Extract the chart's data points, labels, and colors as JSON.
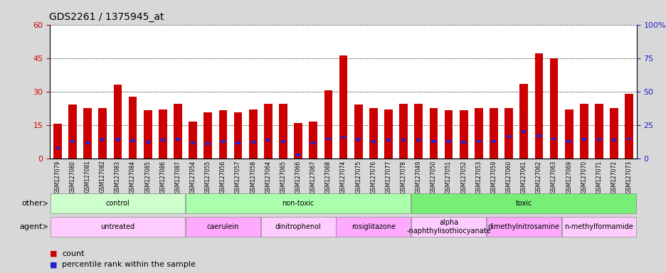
{
  "title": "GDS2261 / 1375945_at",
  "samples": [
    "GSM127079",
    "GSM127080",
    "GSM127081",
    "GSM127082",
    "GSM127083",
    "GSM127084",
    "GSM127085",
    "GSM127086",
    "GSM127087",
    "GSM127054",
    "GSM127055",
    "GSM127056",
    "GSM127057",
    "GSM127058",
    "GSM127064",
    "GSM127065",
    "GSM127066",
    "GSM127067",
    "GSM127068",
    "GSM127074",
    "GSM127075",
    "GSM127076",
    "GSM127077",
    "GSM127078",
    "GSM127049",
    "GSM127050",
    "GSM127051",
    "GSM127052",
    "GSM127053",
    "GSM127059",
    "GSM127060",
    "GSM127061",
    "GSM127062",
    "GSM127063",
    "GSM127069",
    "GSM127070",
    "GSM127071",
    "GSM127072",
    "GSM127073"
  ],
  "counts": [
    15.5,
    24.0,
    22.5,
    22.5,
    33.0,
    27.5,
    21.5,
    22.0,
    24.5,
    16.5,
    20.5,
    21.5,
    20.5,
    22.0,
    24.5,
    24.5,
    16.0,
    16.5,
    30.5,
    46.0,
    24.0,
    22.5,
    22.0,
    24.5,
    24.5,
    22.5,
    21.5,
    21.5,
    22.5,
    22.5,
    22.5,
    33.5,
    47.0,
    45.0,
    22.0,
    24.5,
    24.5,
    22.5,
    29.0
  ],
  "percentile_ranks": [
    7.5,
    12.5,
    11.5,
    14.0,
    14.0,
    13.0,
    12.0,
    13.5,
    14.0,
    11.5,
    11.0,
    12.5,
    11.5,
    12.0,
    13.5,
    12.5,
    2.5,
    11.5,
    14.5,
    15.5,
    14.0,
    12.5,
    13.5,
    13.5,
    13.5,
    12.5,
    12.5,
    12.0,
    12.5,
    12.5,
    16.5,
    20.0,
    17.0,
    14.5,
    12.5,
    14.0,
    14.0,
    13.5,
    14.5
  ],
  "ylim_left": [
    0,
    60
  ],
  "ylim_right": [
    0,
    100
  ],
  "yticks_left": [
    0,
    15,
    30,
    45,
    60
  ],
  "yticks_right": [
    0,
    25,
    50,
    75,
    100
  ],
  "bar_color": "#cc0000",
  "percentile_color": "#2222cc",
  "bg_color": "#d8d8d8",
  "plot_bg": "#ffffff",
  "groups": [
    {
      "label": "control",
      "start": 0,
      "end": 9,
      "color": "#ccffcc"
    },
    {
      "label": "non-toxic",
      "start": 9,
      "end": 24,
      "color": "#aaffaa"
    },
    {
      "label": "toxic",
      "start": 24,
      "end": 39,
      "color": "#77ee77"
    }
  ],
  "agents": [
    {
      "label": "untreated",
      "start": 0,
      "end": 9,
      "color": "#ffccff"
    },
    {
      "label": "caerulein",
      "start": 9,
      "end": 14,
      "color": "#ffaaff"
    },
    {
      "label": "dinitrophenol",
      "start": 14,
      "end": 19,
      "color": "#ffccff"
    },
    {
      "label": "rosiglitazone",
      "start": 19,
      "end": 24,
      "color": "#ffaaff"
    },
    {
      "label": "alpha-naphthylisothiocyanate",
      "start": 24,
      "end": 29,
      "color": "#ffccff"
    },
    {
      "label": "dimethylnitrosamine",
      "start": 29,
      "end": 34,
      "color": "#ffaaff"
    },
    {
      "label": "n-methylformamide",
      "start": 34,
      "end": 39,
      "color": "#ffccff"
    }
  ],
  "other_label": "other",
  "agent_label": "agent",
  "legend_count": "count",
  "legend_percentile": "percentile rank within the sample",
  "title_fontsize": 10,
  "bar_width": 0.55
}
